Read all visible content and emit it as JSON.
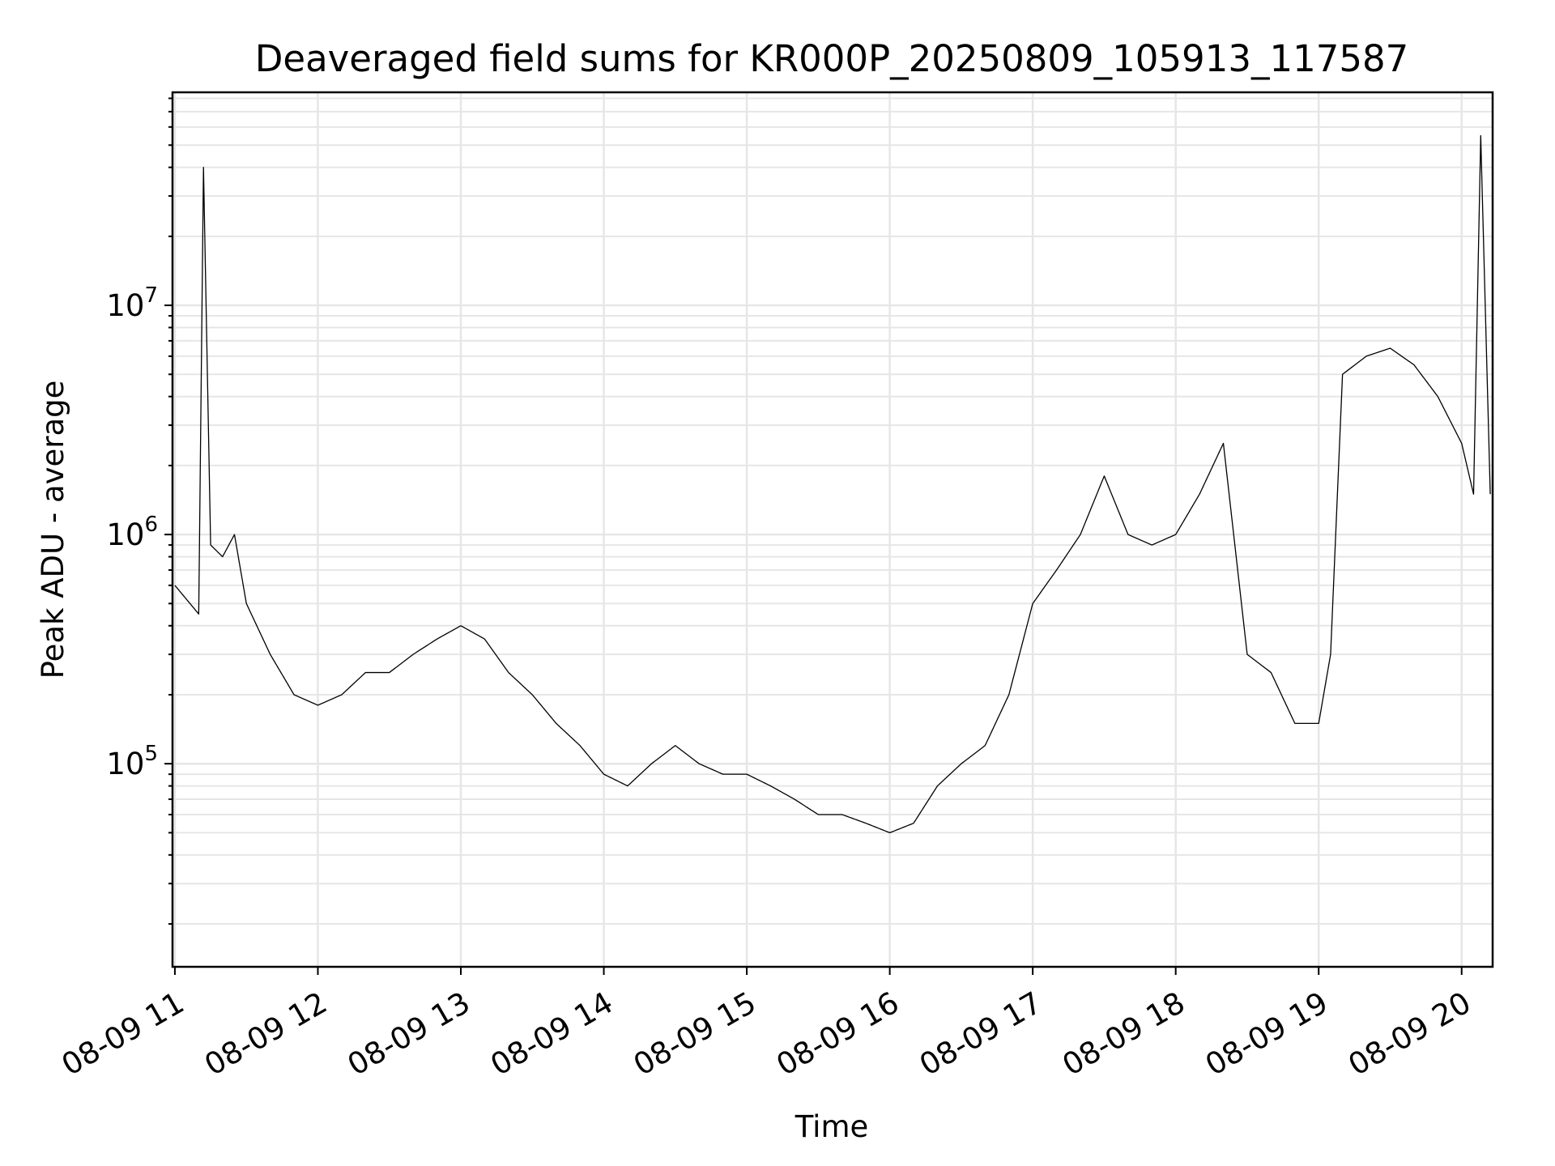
{
  "chart_data": {
    "type": "line",
    "title": "Deaveraged field sums for KR000P_20250809_105913_117587",
    "xlabel": "Time",
    "ylabel": "Peak ADU - average",
    "yscale": "log",
    "xlim": [
      "08-09 10:59",
      "08-09 20:13"
    ],
    "ylim": [
      13000,
      85000000
    ],
    "grid": true,
    "x_ticks": [
      "08-09 11",
      "08-09 12",
      "08-09 13",
      "08-09 14",
      "08-09 15",
      "08-09 16",
      "08-09 17",
      "08-09 18",
      "08-09 19",
      "08-09 20"
    ],
    "y_ticks": [
      {
        "base": "10",
        "exp": "5",
        "value": 100000
      },
      {
        "base": "10",
        "exp": "6",
        "value": 1000000
      },
      {
        "base": "10",
        "exp": "7",
        "value": 10000000
      }
    ],
    "line_color": "#000000",
    "series": [
      {
        "x": [
          "08-09 11:00",
          "08-09 11:10",
          "08-09 11:12",
          "08-09 11:15",
          "08-09 11:20",
          "08-09 11:25",
          "08-09 11:30",
          "08-09 11:40",
          "08-09 11:50",
          "08-09 12:00",
          "08-09 12:10",
          "08-09 12:20",
          "08-09 12:30",
          "08-09 12:40",
          "08-09 12:50",
          "08-09 13:00",
          "08-09 13:10",
          "08-09 13:20",
          "08-09 13:30",
          "08-09 13:40",
          "08-09 13:50",
          "08-09 14:00",
          "08-09 14:10",
          "08-09 14:20",
          "08-09 14:30",
          "08-09 14:40",
          "08-09 14:50",
          "08-09 15:00",
          "08-09 15:10",
          "08-09 15:20",
          "08-09 15:30",
          "08-09 15:40",
          "08-09 15:50",
          "08-09 16:00",
          "08-09 16:10",
          "08-09 16:20",
          "08-09 16:30",
          "08-09 16:40",
          "08-09 16:50",
          "08-09 17:00",
          "08-09 17:10",
          "08-09 17:20",
          "08-09 17:30",
          "08-09 17:40",
          "08-09 17:50",
          "08-09 18:00",
          "08-09 18:10",
          "08-09 18:20",
          "08-09 18:30",
          "08-09 18:40",
          "08-09 18:50",
          "08-09 19:00",
          "08-09 19:05",
          "08-09 19:10",
          "08-09 19:20",
          "08-09 19:30",
          "08-09 19:40",
          "08-09 19:50",
          "08-09 20:00",
          "08-09 20:05",
          "08-09 20:08",
          "08-09 20:12"
        ],
        "y": [
          600000,
          450000,
          40000000,
          900000,
          800000,
          1000000,
          500000,
          300000,
          200000,
          180000,
          200000,
          250000,
          250000,
          300000,
          350000,
          400000,
          350000,
          250000,
          200000,
          150000,
          120000,
          90000,
          80000,
          100000,
          120000,
          100000,
          90000,
          90000,
          80000,
          70000,
          60000,
          60000,
          55000,
          50000,
          55000,
          80000,
          100000,
          120000,
          200000,
          500000,
          700000,
          1000000,
          1800000,
          1000000,
          900000,
          1000000,
          1500000,
          2500000,
          300000,
          250000,
          150000,
          150000,
          300000,
          5000000,
          6000000,
          6500000,
          5500000,
          4000000,
          2500000,
          1500000,
          55000000,
          1500000
        ]
      }
    ]
  }
}
